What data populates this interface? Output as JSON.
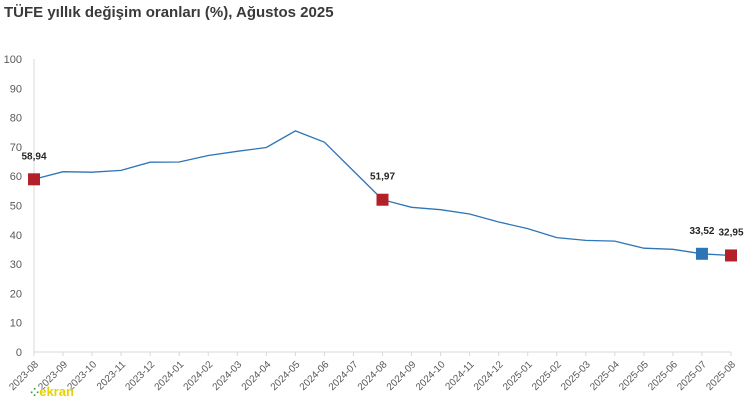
{
  "title": "TÜFE yıllık değişim oranları (%), Ağustos 2025",
  "logo_text": "ekran",
  "chart_data": {
    "type": "line",
    "title": "TÜFE yıllık değişim oranları (%), Ağustos 2025",
    "xlabel": "",
    "ylabel": "",
    "ylim": [
      0,
      100
    ],
    "yticks": [
      0,
      10,
      20,
      30,
      40,
      50,
      60,
      70,
      80,
      90,
      100
    ],
    "grid": false,
    "categories": [
      "2023-08",
      "2023-09",
      "2023-10",
      "2023-11",
      "2023-12",
      "2024-01",
      "2024-02",
      "2024-03",
      "2024-04",
      "2024-05",
      "2024-06",
      "2024-07",
      "2024-08",
      "2024-09",
      "2024-10",
      "2024-11",
      "2024-12",
      "2025-01",
      "2025-02",
      "2025-03",
      "2025-04",
      "2025-05",
      "2025-06",
      "2025-07",
      "2025-08"
    ],
    "series": [
      {
        "values": [
          58.94,
          61.53,
          61.36,
          61.98,
          64.77,
          64.86,
          67.07,
          68.5,
          69.8,
          75.45,
          71.6,
          61.78,
          51.97,
          49.38,
          48.58,
          47.09,
          44.38,
          42.12,
          39.05,
          38.1,
          37.86,
          35.41,
          35.05,
          33.52,
          32.95
        ]
      }
    ],
    "labeled_points": [
      {
        "category": "2023-08",
        "label": "58,94"
      },
      {
        "category": "2024-08",
        "label": "51,97"
      },
      {
        "category": "2025-07",
        "label": "33,52"
      },
      {
        "category": "2025-08",
        "label": "32,95"
      }
    ],
    "colors": {
      "line": "#2E75B6",
      "marker_red": "#B2202A",
      "marker_blue": "#2E75B6",
      "axis": "#D9D9D9",
      "text": "#595959"
    }
  }
}
